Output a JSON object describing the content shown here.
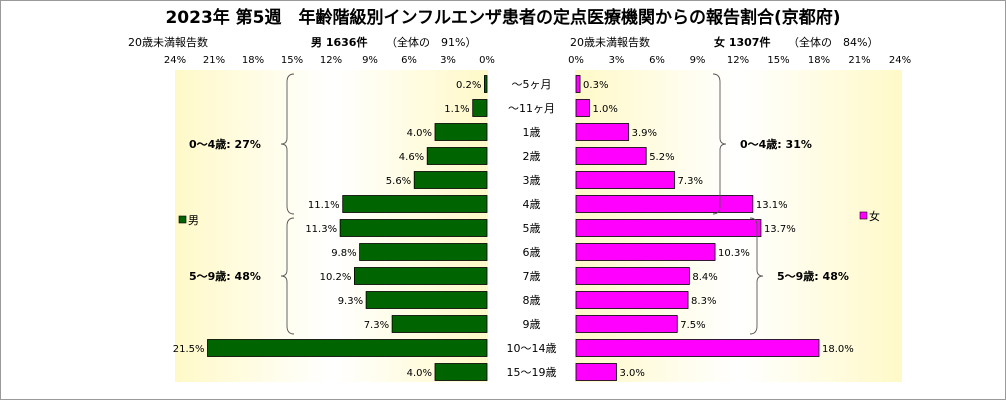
{
  "chart_data": {
    "type": "bar",
    "title": "2023年 第5週　年齢階級別インフルエンザ患者の定点医療機関からの報告割合(京都府)",
    "categories": [
      "～5ヶ月",
      "～11ヶ月",
      "1歳",
      "2歳",
      "3歳",
      "4歳",
      "5歳",
      "6歳",
      "7歳",
      "8歳",
      "9歳",
      "10～14歳",
      "15～19歳"
    ],
    "xlim": [
      0,
      24
    ],
    "tick_labels": [
      "24%",
      "21%",
      "18%",
      "15%",
      "12%",
      "9%",
      "6%",
      "3%",
      "0%"
    ],
    "tick_labels_right": [
      "0%",
      "3%",
      "6%",
      "9%",
      "12%",
      "15%",
      "18%",
      "21%",
      "24%"
    ],
    "series": [
      {
        "name": "男",
        "color": "#006400",
        "values": [
          0.2,
          1.1,
          4.0,
          4.6,
          5.6,
          11.1,
          11.3,
          9.8,
          10.2,
          9.3,
          7.3,
          21.5,
          4.0
        ],
        "value_labels": [
          "0.2%",
          "1.1%",
          "4.0%",
          "4.6%",
          "5.6%",
          "11.1%",
          "11.3%",
          "9.8%",
          "10.2%",
          "9.3%",
          "7.3%",
          "21.5%",
          "4.0%"
        ],
        "header_left": "20歳未満報告数",
        "header_count": "男 1636件",
        "header_total": "（全体の　91%）",
        "groups": [
          {
            "label": "0～4歳: 27%",
            "from": 0,
            "to": 5
          },
          {
            "label": "5～9歳: 48%",
            "from": 6,
            "to": 10
          }
        ]
      },
      {
        "name": "女",
        "color": "#ff00ff",
        "values": [
          0.3,
          1.0,
          3.9,
          5.2,
          7.3,
          13.1,
          13.7,
          10.3,
          8.4,
          8.3,
          7.5,
          18.0,
          3.0
        ],
        "value_labels": [
          "0.3%",
          "1.0%",
          "3.9%",
          "5.2%",
          "7.3%",
          "13.1%",
          "13.7%",
          "10.3%",
          "8.4%",
          "8.3%",
          "7.5%",
          "18.0%",
          "3.0%"
        ],
        "header_left": "20歳未満報告数",
        "header_count": "女 1307件",
        "header_total": "（全体の　84%）",
        "groups": [
          {
            "label": "0～4歳: 31%",
            "from": 0,
            "to": 5
          },
          {
            "label": "5～9歳: 48%",
            "from": 6,
            "to": 10
          }
        ]
      }
    ],
    "legend": [
      {
        "label": "男",
        "color": "#006400"
      },
      {
        "label": "女",
        "color": "#ff00ff"
      }
    ],
    "grid": false
  }
}
